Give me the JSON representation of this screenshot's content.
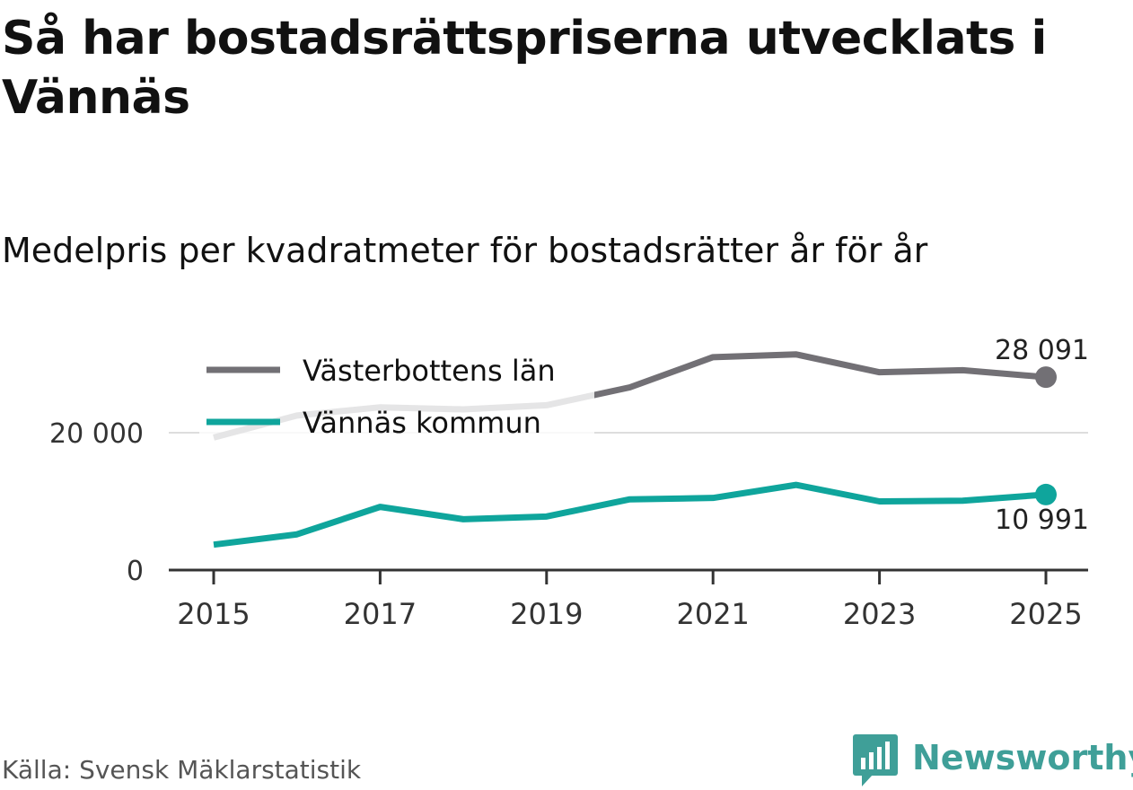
{
  "title": "Så har bostadsrättspriserna utvecklats i Vännäs",
  "subtitle": "Medelpris per kvadratmeter för bostadsrätter år för år",
  "source": "Källa: Svensk Mäklarstatistik",
  "brand": {
    "name": "Newsworthy",
    "icon": "bar-chart-speech-bubble-icon",
    "color": "#3f9f98"
  },
  "chart_data": {
    "type": "line",
    "title": "Så har bostadsrättspriserna utvecklats i Vännäs",
    "subtitle": "Medelpris per kvadratmeter för bostadsrätter år för år",
    "xlabel": "",
    "ylabel": "",
    "x": [
      2015,
      2016,
      2017,
      2018,
      2019,
      2020,
      2021,
      2022,
      2023,
      2024,
      2025
    ],
    "x_ticks": [
      "2015",
      "2017",
      "2019",
      "2021",
      "2023",
      "2025"
    ],
    "y_ticks": [
      {
        "value": 0,
        "label": "0"
      },
      {
        "value": 20000,
        "label": "20 000"
      }
    ],
    "ylim": [
      0,
      33000
    ],
    "grid": true,
    "legend_position": "top-left",
    "series": [
      {
        "name": "Västerbottens län",
        "color": "#727075",
        "values": [
          19300,
          22500,
          23700,
          23400,
          24000,
          26600,
          31000,
          31400,
          28800,
          29100,
          28091
        ],
        "end_label": "28 091"
      },
      {
        "name": "Vännäs kommun",
        "color": "#0fa59c",
        "values": [
          3700,
          5200,
          9200,
          7400,
          7800,
          10300,
          10500,
          12400,
          10000,
          10100,
          10991
        ],
        "end_label": "10 991"
      }
    ]
  }
}
